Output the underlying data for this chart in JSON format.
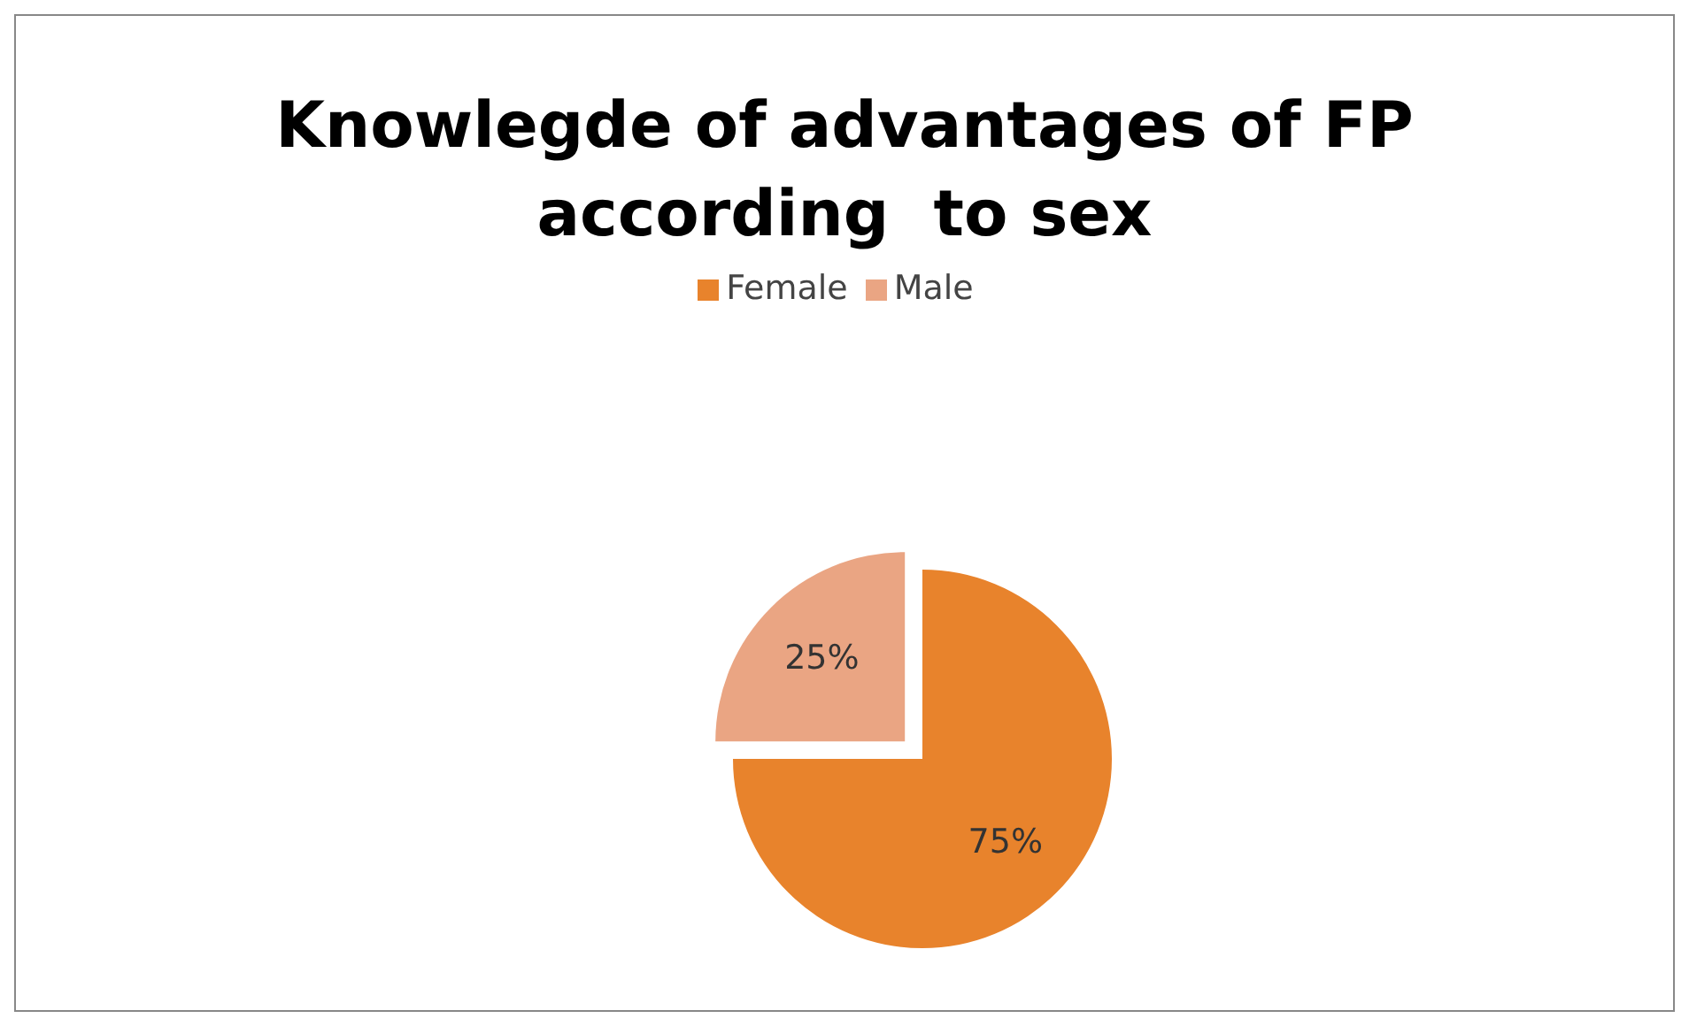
{
  "chart_data": {
    "type": "pie",
    "title": "Knowlegde of advantages of FP according  to sex",
    "categories": [
      "Female",
      "Male"
    ],
    "values": [
      75,
      25
    ],
    "colors": [
      "#e8832c",
      "#eaa583"
    ],
    "value_labels": [
      "75%",
      "25%"
    ],
    "legend": "top"
  }
}
